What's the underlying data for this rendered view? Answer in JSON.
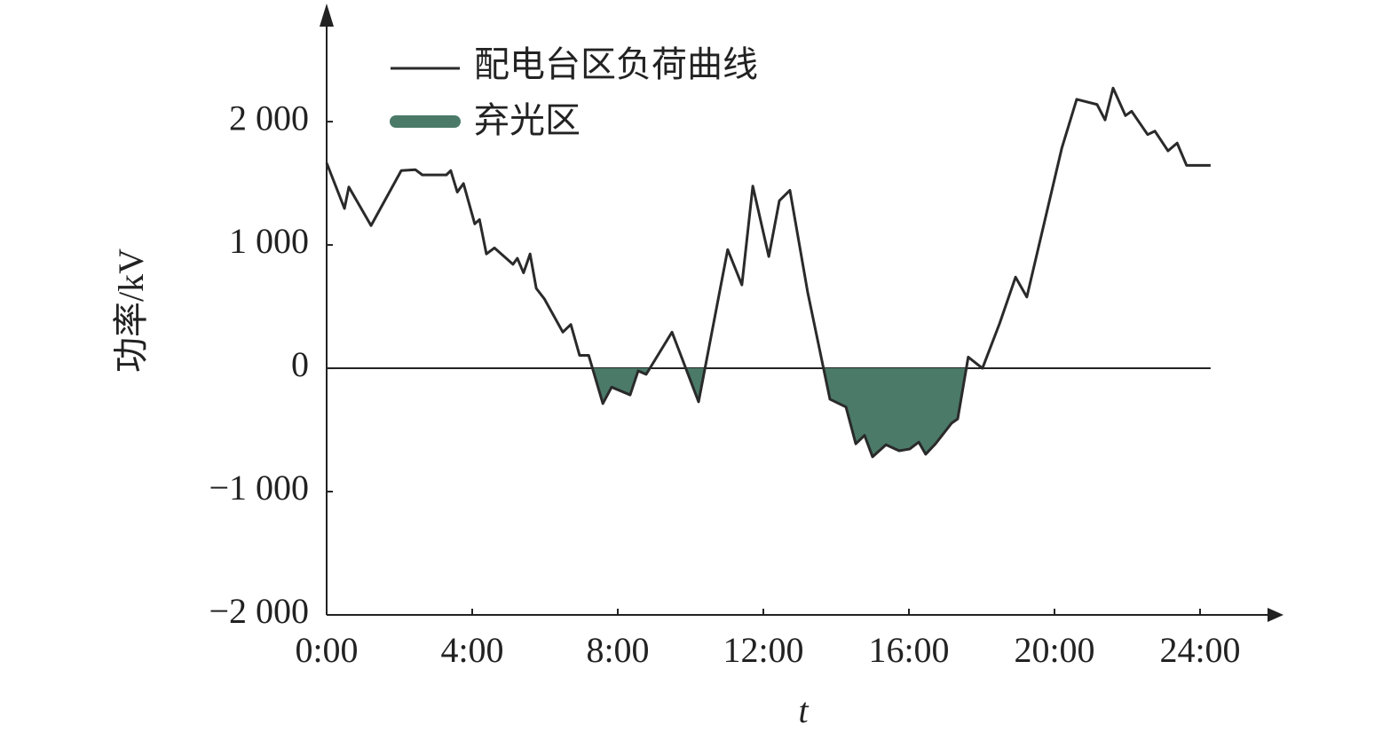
{
  "chart_data": {
    "type": "line",
    "y_label": "功率/kV",
    "x_label": "t",
    "x": [
      0,
      0.49,
      0.61,
      1.22,
      2.05,
      2.44,
      2.63,
      3.29,
      3.41,
      3.59,
      3.76,
      4.07,
      4.2,
      4.39,
      4.61,
      5.12,
      5.24,
      5.41,
      5.59,
      5.76,
      5.98,
      6.49,
      6.71,
      6.95,
      7.2,
      7.59,
      7.83,
      8.34,
      8.56,
      8.78,
      9.49,
      10.22,
      11.02,
      11.41,
      11.71,
      12.15,
      12.44,
      12.73,
      13.22,
      13.83,
      14.27,
      14.54,
      14.78,
      15.0,
      15.37,
      15.73,
      16.02,
      16.27,
      16.46,
      16.73,
      17.17,
      17.34,
      17.63,
      18.02,
      18.49,
      18.93,
      19.24,
      20.2,
      20.61,
      21.17,
      21.39,
      21.61,
      21.95,
      22.12,
      22.56,
      22.76,
      23.12,
      23.37,
      23.63,
      24.29
    ],
    "series": [
      {
        "name": "配电台区负荷曲线",
        "color": "#2a2a2a",
        "values": [
          1665,
          1296,
          1470,
          1157,
          1603,
          1610,
          1568,
          1568,
          1603,
          1429,
          1498,
          1171,
          1206,
          927,
          976,
          843,
          892,
          774,
          927,
          648,
          564,
          293,
          355,
          105,
          105,
          -286,
          -153,
          -216,
          -21,
          -49,
          293,
          -272,
          962,
          676,
          1477,
          906,
          1359,
          1443,
          613,
          -251,
          -314,
          -613,
          -544,
          -718,
          -620,
          -669,
          -655,
          -599,
          -697,
          -613,
          -446,
          -411,
          91,
          0,
          362,
          739,
          578,
          1784,
          2181,
          2139,
          2014,
          2272,
          2049,
          2084,
          1895,
          1923,
          1763,
          1826,
          1645,
          1645
        ]
      }
    ],
    "below_zero_fill": {
      "name": "弃光区",
      "color": "#4b7a69"
    },
    "xlim": [
      0,
      26
    ],
    "ylim": [
      -2000,
      2900
    ],
    "xticks": [
      {
        "value": 0,
        "label": "0:00"
      },
      {
        "value": 4,
        "label": "4:00"
      },
      {
        "value": 8,
        "label": "8:00"
      },
      {
        "value": 12,
        "label": "12:00"
      },
      {
        "value": 16,
        "label": "16:00"
      },
      {
        "value": 20,
        "label": "20:00"
      },
      {
        "value": 24,
        "label": "24:00"
      }
    ],
    "yticks": [
      {
        "value": -2000,
        "label": "−2 000"
      },
      {
        "value": -1000,
        "label": "−1 000"
      },
      0,
      {
        "value": 1000,
        "label": "1 000"
      },
      {
        "value": 2000,
        "label": "2 000"
      }
    ],
    "zero_line": true
  }
}
